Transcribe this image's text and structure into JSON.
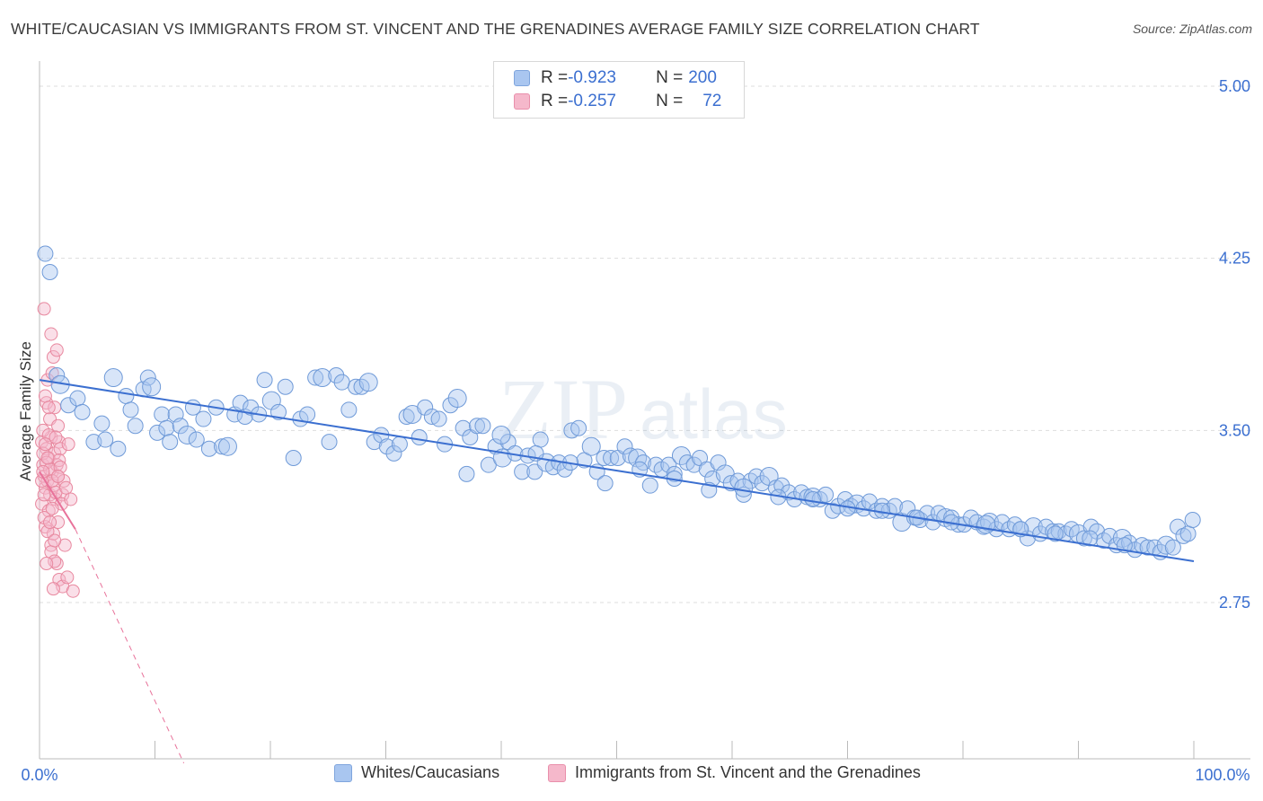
{
  "title": "WHITE/CAUCASIAN VS IMMIGRANTS FROM ST. VINCENT AND THE GRENADINES AVERAGE FAMILY SIZE CORRELATION CHART",
  "source": "Source: ZipAtlas.com",
  "watermark": {
    "part1": "ZIP",
    "part2": "atlas"
  },
  "stats": [
    {
      "r_label": "R = ",
      "r_value": "-0.923",
      "n_label": "N = ",
      "n_value": "200",
      "color": "#a9c6f0"
    },
    {
      "r_label": "R = ",
      "r_value": "-0.257",
      "n_label": "N = ",
      "n_value": "72",
      "color": "#f5b8cb"
    }
  ],
  "legend": [
    {
      "label": "Whites/Caucasians",
      "color": "#a9c6f0"
    },
    {
      "label": "Immigrants from St. Vincent and the Grenadines",
      "color": "#f5b8cb"
    }
  ],
  "colors": {
    "blue": "#3b6fd0",
    "blue_fill": "#a9c6f0",
    "pink": "#e8729a",
    "pink_fill": "#f5b8cb",
    "grid": "#dddddd"
  },
  "chart_data": {
    "type": "scatter",
    "title": "WHITE/CAUCASIAN VS IMMIGRANTS FROM ST. VINCENT AND THE GRENADINES AVERAGE FAMILY SIZE CORRELATION CHART",
    "xlabel": "",
    "ylabel": "Average Family Size",
    "xlim": [
      0,
      100
    ],
    "ylim": [
      2.0,
      5.08
    ],
    "x_tick_labels": [
      "0.0%",
      "100.0%"
    ],
    "y_ticks": [
      2.75,
      3.5,
      4.25,
      5.0
    ],
    "y_tick_labels": [
      "2.75",
      "3.50",
      "4.25",
      "5.00"
    ],
    "grid": "horizontal dashed",
    "legend_position": "bottom",
    "series": [
      {
        "name": "Whites/Caucasians",
        "color": "#a9c6f0",
        "trend": {
          "x": [
            0,
            100
          ],
          "y": [
            3.72,
            2.93
          ]
        },
        "points": [
          [
            0.5,
            4.27
          ],
          [
            0.9,
            4.19
          ],
          [
            1.5,
            3.74
          ],
          [
            1.8,
            3.7
          ],
          [
            2.5,
            3.61
          ],
          [
            3.3,
            3.64
          ],
          [
            3.7,
            3.58
          ],
          [
            4.7,
            3.45
          ],
          [
            5.4,
            3.53
          ],
          [
            5.7,
            3.46
          ],
          [
            6.4,
            3.73
          ],
          [
            6.8,
            3.42
          ],
          [
            7.5,
            3.65
          ],
          [
            7.9,
            3.59
          ],
          [
            8.3,
            3.52
          ],
          [
            9.0,
            3.68
          ],
          [
            9.4,
            3.73
          ],
          [
            9.7,
            3.69
          ],
          [
            10.2,
            3.49
          ],
          [
            10.6,
            3.57
          ],
          [
            11.0,
            3.51
          ],
          [
            11.3,
            3.45
          ],
          [
            11.8,
            3.57
          ],
          [
            12.2,
            3.52
          ],
          [
            12.8,
            3.48
          ],
          [
            13.3,
            3.6
          ],
          [
            13.6,
            3.46
          ],
          [
            14.2,
            3.55
          ],
          [
            14.7,
            3.42
          ],
          [
            15.3,
            3.6
          ],
          [
            15.8,
            3.43
          ],
          [
            16.3,
            3.43
          ],
          [
            16.9,
            3.57
          ],
          [
            17.4,
            3.62
          ],
          [
            17.8,
            3.56
          ],
          [
            18.3,
            3.6
          ],
          [
            19.0,
            3.57
          ],
          [
            19.5,
            3.72
          ],
          [
            20.1,
            3.63
          ],
          [
            20.7,
            3.58
          ],
          [
            21.3,
            3.69
          ],
          [
            22.0,
            3.38
          ],
          [
            22.6,
            3.55
          ],
          [
            23.2,
            3.57
          ],
          [
            23.9,
            3.73
          ],
          [
            24.5,
            3.73
          ],
          [
            25.1,
            3.45
          ],
          [
            25.7,
            3.74
          ],
          [
            26.2,
            3.71
          ],
          [
            26.8,
            3.59
          ],
          [
            27.4,
            3.69
          ],
          [
            27.9,
            3.69
          ],
          [
            28.5,
            3.71
          ],
          [
            29.0,
            3.45
          ],
          [
            29.6,
            3.48
          ],
          [
            30.1,
            3.43
          ],
          [
            30.7,
            3.4
          ],
          [
            31.2,
            3.44
          ],
          [
            31.8,
            3.56
          ],
          [
            32.3,
            3.57
          ],
          [
            32.9,
            3.47
          ],
          [
            33.4,
            3.6
          ],
          [
            34.0,
            3.56
          ],
          [
            34.6,
            3.55
          ],
          [
            35.1,
            3.44
          ],
          [
            35.6,
            3.61
          ],
          [
            36.2,
            3.64
          ],
          [
            36.7,
            3.51
          ],
          [
            37.3,
            3.47
          ],
          [
            37.9,
            3.52
          ],
          [
            38.4,
            3.52
          ],
          [
            38.9,
            3.35
          ],
          [
            39.5,
            3.43
          ],
          [
            40.1,
            3.38
          ],
          [
            40.6,
            3.45
          ],
          [
            41.2,
            3.4
          ],
          [
            41.8,
            3.32
          ],
          [
            42.3,
            3.39
          ],
          [
            42.9,
            3.32
          ],
          [
            43.4,
            3.46
          ],
          [
            43.9,
            3.36
          ],
          [
            44.5,
            3.34
          ],
          [
            45.0,
            3.36
          ],
          [
            45.5,
            3.33
          ],
          [
            46.1,
            3.5
          ],
          [
            46.7,
            3.51
          ],
          [
            47.2,
            3.37
          ],
          [
            47.8,
            3.43
          ],
          [
            48.3,
            3.32
          ],
          [
            48.9,
            3.38
          ],
          [
            49.5,
            3.38
          ],
          [
            50.1,
            3.38
          ],
          [
            50.7,
            3.43
          ],
          [
            51.2,
            3.39
          ],
          [
            51.8,
            3.38
          ],
          [
            52.3,
            3.36
          ],
          [
            52.9,
            3.26
          ],
          [
            53.4,
            3.35
          ],
          [
            53.9,
            3.33
          ],
          [
            54.5,
            3.35
          ],
          [
            55.0,
            3.31
          ],
          [
            55.6,
            3.39
          ],
          [
            56.1,
            3.36
          ],
          [
            56.7,
            3.35
          ],
          [
            57.2,
            3.38
          ],
          [
            57.8,
            3.33
          ],
          [
            58.3,
            3.29
          ],
          [
            58.8,
            3.36
          ],
          [
            59.4,
            3.31
          ],
          [
            59.9,
            3.27
          ],
          [
            60.5,
            3.28
          ],
          [
            61.0,
            3.22
          ],
          [
            61.6,
            3.28
          ],
          [
            62.1,
            3.3
          ],
          [
            62.6,
            3.27
          ],
          [
            63.2,
            3.3
          ],
          [
            63.8,
            3.25
          ],
          [
            64.3,
            3.26
          ],
          [
            64.9,
            3.23
          ],
          [
            65.4,
            3.2
          ],
          [
            66.0,
            3.23
          ],
          [
            66.5,
            3.21
          ],
          [
            67.0,
            3.21
          ],
          [
            67.6,
            3.2
          ],
          [
            68.1,
            3.22
          ],
          [
            68.7,
            3.15
          ],
          [
            69.2,
            3.17
          ],
          [
            69.8,
            3.2
          ],
          [
            70.3,
            3.17
          ],
          [
            70.8,
            3.18
          ],
          [
            71.4,
            3.16
          ],
          [
            71.9,
            3.19
          ],
          [
            72.5,
            3.15
          ],
          [
            73.0,
            3.17
          ],
          [
            73.6,
            3.15
          ],
          [
            74.1,
            3.17
          ],
          [
            74.7,
            3.1
          ],
          [
            75.2,
            3.16
          ],
          [
            75.8,
            3.12
          ],
          [
            76.3,
            3.11
          ],
          [
            76.9,
            3.14
          ],
          [
            77.4,
            3.1
          ],
          [
            77.9,
            3.14
          ],
          [
            78.5,
            3.12
          ],
          [
            79.0,
            3.12
          ],
          [
            79.6,
            3.09
          ],
          [
            80.1,
            3.09
          ],
          [
            80.7,
            3.12
          ],
          [
            81.2,
            3.1
          ],
          [
            81.8,
            3.08
          ],
          [
            82.3,
            3.1
          ],
          [
            82.9,
            3.07
          ],
          [
            83.4,
            3.1
          ],
          [
            84.0,
            3.07
          ],
          [
            84.5,
            3.09
          ],
          [
            85.0,
            3.07
          ],
          [
            85.6,
            3.03
          ],
          [
            86.1,
            3.08
          ],
          [
            86.7,
            3.05
          ],
          [
            87.2,
            3.08
          ],
          [
            87.8,
            3.06
          ],
          [
            88.3,
            3.06
          ],
          [
            88.9,
            3.05
          ],
          [
            89.4,
            3.07
          ],
          [
            90.0,
            3.05
          ],
          [
            90.5,
            3.03
          ],
          [
            91.1,
            3.08
          ],
          [
            91.6,
            3.06
          ],
          [
            92.2,
            3.02
          ],
          [
            92.7,
            3.04
          ],
          [
            93.3,
            3.0
          ],
          [
            93.8,
            3.03
          ],
          [
            94.4,
            3.01
          ],
          [
            94.9,
            2.98
          ],
          [
            95.5,
            3.0
          ],
          [
            96.0,
            2.99
          ],
          [
            96.6,
            2.99
          ],
          [
            97.1,
            2.97
          ],
          [
            97.6,
            3.0
          ],
          [
            98.2,
            2.99
          ],
          [
            98.6,
            3.08
          ],
          [
            99.1,
            3.04
          ],
          [
            99.5,
            3.05
          ],
          [
            99.9,
            3.11
          ],
          [
            37.0,
            3.31
          ],
          [
            40.0,
            3.48
          ],
          [
            43.0,
            3.4
          ],
          [
            46.0,
            3.36
          ],
          [
            49.0,
            3.27
          ],
          [
            52.0,
            3.33
          ],
          [
            55.0,
            3.29
          ],
          [
            58.0,
            3.24
          ],
          [
            61.0,
            3.25
          ],
          [
            64.0,
            3.21
          ],
          [
            67.0,
            3.2
          ],
          [
            70.0,
            3.16
          ],
          [
            73.0,
            3.15
          ],
          [
            76.0,
            3.12
          ],
          [
            79.0,
            3.1
          ],
          [
            82.0,
            3.09
          ],
          [
            85.0,
            3.07
          ],
          [
            88.0,
            3.05
          ],
          [
            91.0,
            3.03
          ],
          [
            94.0,
            3.0
          ]
        ]
      },
      {
        "name": "Immigrants from St. Vincent and the Grenadines",
        "color": "#f5b8cb",
        "trend": {
          "x": [
            0,
            3.1
          ],
          "y": [
            3.32,
            3.07
          ],
          "dashed_x": [
            3.1,
            12.5
          ],
          "dashed_y": [
            3.07,
            2.05
          ]
        },
        "points": [
          [
            0.2,
            3.45
          ],
          [
            0.3,
            3.35
          ],
          [
            0.4,
            3.3
          ],
          [
            0.5,
            3.25
          ],
          [
            0.6,
            3.42
          ],
          [
            0.7,
            3.28
          ],
          [
            0.8,
            3.38
          ],
          [
            0.9,
            3.22
          ],
          [
            1.0,
            3.47
          ],
          [
            1.1,
            3.32
          ],
          [
            1.2,
            3.26
          ],
          [
            1.3,
            3.4
          ],
          [
            1.4,
            3.2
          ],
          [
            1.5,
            3.35
          ],
          [
            1.6,
            3.3
          ],
          [
            1.7,
            3.45
          ],
          [
            0.2,
            3.18
          ],
          [
            0.3,
            3.5
          ],
          [
            0.5,
            3.08
          ],
          [
            0.6,
            3.62
          ],
          [
            0.8,
            3.15
          ],
          [
            0.9,
            3.55
          ],
          [
            1.0,
            3.0
          ],
          [
            1.2,
            3.05
          ],
          [
            1.3,
            3.6
          ],
          [
            1.5,
            2.92
          ],
          [
            1.6,
            3.1
          ],
          [
            1.8,
            3.42
          ],
          [
            2.0,
            3.22
          ],
          [
            0.4,
            4.03
          ],
          [
            1.0,
            3.92
          ],
          [
            1.2,
            3.82
          ],
          [
            1.5,
            3.85
          ],
          [
            0.7,
            3.72
          ],
          [
            1.1,
            3.75
          ],
          [
            0.5,
            3.65
          ],
          [
            0.8,
            3.6
          ],
          [
            1.6,
            3.52
          ],
          [
            0.3,
            3.4
          ],
          [
            0.6,
            3.36
          ],
          [
            0.9,
            3.33
          ],
          [
            1.1,
            3.28
          ],
          [
            1.4,
            3.23
          ],
          [
            0.4,
            3.12
          ],
          [
            0.7,
            3.06
          ],
          [
            1.0,
            2.97
          ],
          [
            1.3,
            2.93
          ],
          [
            1.7,
            2.85
          ],
          [
            2.0,
            2.82
          ],
          [
            1.2,
            2.81
          ],
          [
            2.9,
            2.8
          ],
          [
            2.4,
            2.86
          ],
          [
            2.2,
            3.0
          ],
          [
            1.9,
            3.18
          ],
          [
            0.8,
            3.48
          ],
          [
            0.5,
            3.44
          ],
          [
            1.7,
            3.37
          ],
          [
            2.5,
            3.44
          ],
          [
            2.1,
            3.28
          ],
          [
            2.7,
            3.2
          ],
          [
            0.9,
            3.1
          ],
          [
            0.6,
            2.92
          ],
          [
            1.4,
            3.47
          ],
          [
            1.8,
            3.34
          ],
          [
            2.3,
            3.25
          ],
          [
            0.2,
            3.28
          ],
          [
            0.4,
            3.22
          ],
          [
            1.1,
            3.16
          ],
          [
            1.3,
            3.02
          ],
          [
            1.6,
            3.3
          ],
          [
            0.7,
            3.38
          ],
          [
            0.3,
            3.32
          ]
        ]
      }
    ]
  }
}
